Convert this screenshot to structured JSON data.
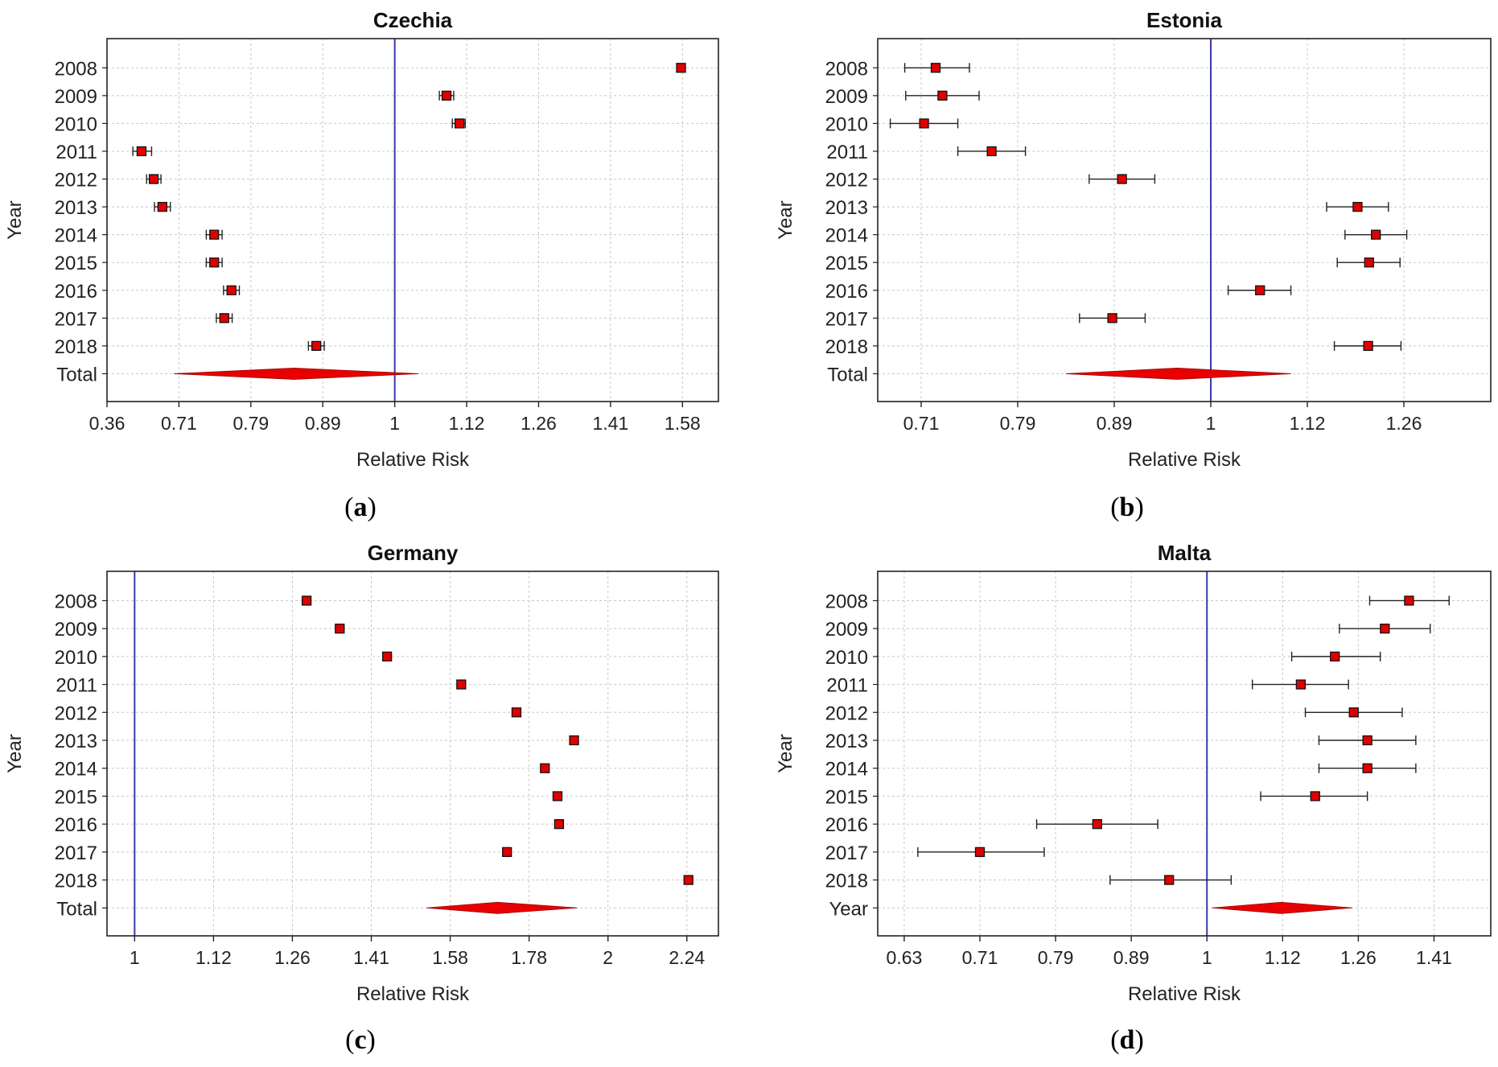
{
  "chart_data": [
    {
      "type": "forest",
      "panel": "a",
      "title": "Czechia",
      "xlabel": "Relative Risk",
      "ylabel": "Year",
      "xticks": [
        "0.36",
        "0.71",
        "0.79",
        "0.89",
        "1",
        "1.12",
        "1.26",
        "1.41",
        "1.58"
      ],
      "xlim": [
        0,
        8.5
      ],
      "reference": 4,
      "rows": [
        {
          "label": "2008",
          "est": 7.98,
          "lo": 7.94,
          "hi": 8.02
        },
        {
          "label": "2009",
          "est": 4.72,
          "lo": 4.62,
          "hi": 4.82
        },
        {
          "label": "2010",
          "est": 4.9,
          "lo": 4.8,
          "hi": 4.98
        },
        {
          "label": "2011",
          "est": 0.48,
          "lo": 0.36,
          "hi": 0.62
        },
        {
          "label": "2012",
          "est": 0.65,
          "lo": 0.55,
          "hi": 0.75
        },
        {
          "label": "2013",
          "est": 0.77,
          "lo": 0.66,
          "hi": 0.88
        },
        {
          "label": "2014",
          "est": 1.49,
          "lo": 1.38,
          "hi": 1.6
        },
        {
          "label": "2015",
          "est": 1.49,
          "lo": 1.38,
          "hi": 1.6
        },
        {
          "label": "2016",
          "est": 1.73,
          "lo": 1.62,
          "hi": 1.84
        },
        {
          "label": "2017",
          "est": 1.63,
          "lo": 1.52,
          "hi": 1.74
        },
        {
          "label": "2018",
          "est": 2.91,
          "lo": 2.8,
          "hi": 3.02
        }
      ],
      "total": {
        "label": "Total",
        "est": 2.6,
        "lo": 0.93,
        "hi": 4.33
      }
    },
    {
      "type": "forest",
      "panel": "b",
      "title": "Estonia",
      "xlabel": "Relative Risk",
      "ylabel": "Year",
      "xticks": [
        "0.71",
        "0.79",
        "0.89",
        "1",
        "1.12",
        "1.26"
      ],
      "xlim": [
        -0.45,
        5.9
      ],
      "reference": 3,
      "rows": [
        {
          "label": "2008",
          "est": 0.15,
          "lo": -0.17,
          "hi": 0.5
        },
        {
          "label": "2009",
          "est": 0.22,
          "lo": -0.16,
          "hi": 0.6
        },
        {
          "label": "2010",
          "est": 0.03,
          "lo": -0.32,
          "hi": 0.38
        },
        {
          "label": "2011",
          "est": 0.73,
          "lo": 0.38,
          "hi": 1.08
        },
        {
          "label": "2012",
          "est": 2.08,
          "lo": 1.74,
          "hi": 2.42
        },
        {
          "label": "2013",
          "est": 4.52,
          "lo": 4.2,
          "hi": 4.84
        },
        {
          "label": "2014",
          "est": 4.71,
          "lo": 4.39,
          "hi": 5.03
        },
        {
          "label": "2015",
          "est": 4.64,
          "lo": 4.31,
          "hi": 4.96
        },
        {
          "label": "2016",
          "est": 3.51,
          "lo": 3.18,
          "hi": 3.83
        },
        {
          "label": "2017",
          "est": 1.98,
          "lo": 1.64,
          "hi": 2.32
        },
        {
          "label": "2018",
          "est": 4.63,
          "lo": 4.28,
          "hi": 4.97
        }
      ],
      "total": {
        "label": "Total",
        "est": 2.65,
        "lo": 1.5,
        "hi": 3.83
      }
    },
    {
      "type": "forest",
      "panel": "c",
      "title": "Germany",
      "xlabel": "Relative Risk",
      "ylabel": "Year",
      "xticks": [
        "1",
        "1.12",
        "1.26",
        "1.41",
        "1.58",
        "1.78",
        "2",
        "2.24"
      ],
      "xlim": [
        -0.35,
        7.4
      ],
      "reference": 0,
      "rows": [
        {
          "label": "2008",
          "est": 2.18
        },
        {
          "label": "2009",
          "est": 2.6
        },
        {
          "label": "2010",
          "est": 3.2
        },
        {
          "label": "2011",
          "est": 4.14
        },
        {
          "label": "2012",
          "est": 4.84
        },
        {
          "label": "2013",
          "est": 5.57
        },
        {
          "label": "2014",
          "est": 5.2
        },
        {
          "label": "2015",
          "est": 5.36
        },
        {
          "label": "2016",
          "est": 5.38
        },
        {
          "label": "2017",
          "est": 4.72
        },
        {
          "label": "2018",
          "est": 7.02
        }
      ],
      "total": {
        "label": "Total",
        "est": 4.6,
        "lo": 3.7,
        "hi": 5.61
      }
    },
    {
      "type": "forest",
      "panel": "d",
      "title": "Malta",
      "xlabel": "Relative Risk",
      "ylabel": "Year",
      "xticks": [
        "0.63",
        "0.71",
        "0.79",
        "0.89",
        "1",
        "1.12",
        "1.26",
        "1.41"
      ],
      "xlim": [
        -0.35,
        7.75
      ],
      "reference": 4,
      "rows": [
        {
          "label": "2008",
          "est": 6.67,
          "lo": 6.15,
          "hi": 7.2
        },
        {
          "label": "2009",
          "est": 6.35,
          "lo": 5.75,
          "hi": 6.95
        },
        {
          "label": "2010",
          "est": 5.69,
          "lo": 5.12,
          "hi": 6.29
        },
        {
          "label": "2011",
          "est": 5.24,
          "lo": 4.6,
          "hi": 5.87
        },
        {
          "label": "2012",
          "est": 5.94,
          "lo": 5.3,
          "hi": 6.58
        },
        {
          "label": "2013",
          "est": 6.12,
          "lo": 5.48,
          "hi": 6.76
        },
        {
          "label": "2014",
          "est": 6.12,
          "lo": 5.48,
          "hi": 6.76
        },
        {
          "label": "2015",
          "est": 5.43,
          "lo": 4.71,
          "hi": 6.12
        },
        {
          "label": "2016",
          "est": 2.55,
          "lo": 1.75,
          "hi": 3.35
        },
        {
          "label": "2017",
          "est": 1.0,
          "lo": 0.18,
          "hi": 1.85
        },
        {
          "label": "2018",
          "est": 3.5,
          "lo": 2.72,
          "hi": 4.32
        }
      ],
      "total": {
        "label": "Year",
        "est": 4.98,
        "lo": 4.07,
        "hi": 5.92
      }
    }
  ],
  "colors": {
    "marker": "#e00000",
    "marker_edge": "#111111",
    "reference_line": "#3a3aa8",
    "grid": "#c8c8c8",
    "diamond": "#e80000",
    "axis": "#222222"
  }
}
